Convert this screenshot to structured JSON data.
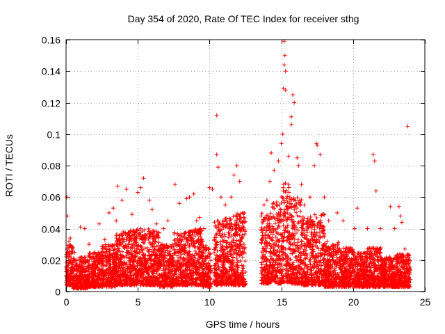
{
  "chart_data": {
    "type": "scatter",
    "title": "Day 354 of 2020, Rate Of TEC Index for receiver sthg",
    "xlabel": "GPS time / hours",
    "ylabel": "ROTI / TECUs",
    "xlim": [
      0,
      25
    ],
    "ylim": [
      0,
      0.16
    ],
    "xticks": [
      0,
      5,
      10,
      15,
      20,
      25
    ],
    "xtick_labels": [
      "0",
      "5",
      "10",
      "15",
      "20",
      "25"
    ],
    "yticks": [
      0,
      0.02,
      0.04,
      0.06,
      0.08,
      0.1,
      0.12,
      0.14,
      0.16
    ],
    "ytick_labels": [
      "0",
      "0.02",
      "0.04",
      "0.06",
      "0.08",
      "0.1",
      "0.12",
      "0.14",
      "0.16"
    ],
    "grid": true,
    "marker": "+",
    "color": "#ff0000",
    "series": [
      {
        "name": "ROTI",
        "points": [
          [
            0.05,
            0.06
          ],
          [
            0.1,
            0.048
          ],
          [
            0.2,
            0.032
          ],
          [
            0.3,
            0.034
          ],
          [
            0.6,
            0.025
          ],
          [
            1.0,
            0.041
          ],
          [
            1.3,
            0.04
          ],
          [
            1.6,
            0.03
          ],
          [
            2.3,
            0.043
          ],
          [
            2.7,
            0.033
          ],
          [
            3.0,
            0.05
          ],
          [
            3.3,
            0.053
          ],
          [
            3.5,
            0.045
          ],
          [
            3.6,
            0.067
          ],
          [
            3.9,
            0.058
          ],
          [
            4.2,
            0.065
          ],
          [
            4.6,
            0.049
          ],
          [
            5.0,
            0.063
          ],
          [
            5.2,
            0.066
          ],
          [
            5.4,
            0.072
          ],
          [
            5.8,
            0.058
          ],
          [
            6.0,
            0.052
          ],
          [
            6.3,
            0.043
          ],
          [
            6.8,
            0.04
          ],
          [
            7.1,
            0.045
          ],
          [
            7.6,
            0.068
          ],
          [
            7.9,
            0.056
          ],
          [
            8.4,
            0.059
          ],
          [
            8.6,
            0.06
          ],
          [
            8.9,
            0.062
          ],
          [
            9.1,
            0.045
          ],
          [
            9.3,
            0.047
          ],
          [
            9.6,
            0.04
          ],
          [
            10.0,
            0.066
          ],
          [
            10.2,
            0.065
          ],
          [
            10.5,
            0.112
          ],
          [
            10.5,
            0.087
          ],
          [
            10.6,
            0.079
          ],
          [
            10.8,
            0.06
          ],
          [
            11.1,
            0.055
          ],
          [
            11.5,
            0.06
          ],
          [
            11.7,
            0.074
          ],
          [
            11.9,
            0.08
          ],
          [
            12.1,
            0.07
          ],
          [
            12.3,
            0.05
          ],
          [
            13.6,
            0.048
          ],
          [
            13.8,
            0.055
          ],
          [
            14.0,
            0.058
          ],
          [
            14.2,
            0.07
          ],
          [
            14.3,
            0.088
          ],
          [
            14.5,
            0.077
          ],
          [
            14.8,
            0.083
          ],
          [
            15.0,
            0.094
          ],
          [
            15.1,
            0.1
          ],
          [
            15.2,
            0.159
          ],
          [
            15.25,
            0.15
          ],
          [
            15.2,
            0.144
          ],
          [
            15.3,
            0.14
          ],
          [
            15.15,
            0.129
          ],
          [
            15.3,
            0.128
          ],
          [
            15.5,
            0.086
          ],
          [
            15.7,
            0.106
          ],
          [
            15.7,
            0.111
          ],
          [
            15.8,
            0.125
          ],
          [
            15.9,
            0.12
          ],
          [
            16.1,
            0.085
          ],
          [
            16.2,
            0.08
          ],
          [
            16.4,
            0.068
          ],
          [
            16.6,
            0.055
          ],
          [
            17.0,
            0.06
          ],
          [
            17.3,
            0.08
          ],
          [
            17.45,
            0.094
          ],
          [
            17.5,
            0.093
          ],
          [
            17.7,
            0.087
          ],
          [
            18.0,
            0.06
          ],
          [
            18.3,
            0.045
          ],
          [
            18.9,
            0.05
          ],
          [
            19.3,
            0.045
          ],
          [
            20.1,
            0.04
          ],
          [
            20.3,
            0.053
          ],
          [
            21.0,
            0.04
          ],
          [
            21.4,
            0.087
          ],
          [
            21.5,
            0.083
          ],
          [
            21.6,
            0.064
          ],
          [
            21.9,
            0.04
          ],
          [
            22.6,
            0.054
          ],
          [
            22.9,
            0.04
          ],
          [
            23.2,
            0.054
          ],
          [
            23.3,
            0.048
          ],
          [
            23.4,
            0.044
          ],
          [
            23.6,
            0.027
          ],
          [
            23.8,
            0.105
          ]
        ],
        "clusters": [
          [
            0.0,
            0.5,
            0.004,
            0.03
          ],
          [
            0.5,
            1.5,
            0.002,
            0.022
          ],
          [
            1.5,
            2.5,
            0.003,
            0.025
          ],
          [
            2.5,
            3.5,
            0.003,
            0.03
          ],
          [
            3.5,
            4.5,
            0.004,
            0.038
          ],
          [
            4.5,
            5.5,
            0.004,
            0.04
          ],
          [
            5.5,
            6.5,
            0.004,
            0.04
          ],
          [
            6.5,
            7.5,
            0.003,
            0.03
          ],
          [
            7.5,
            8.5,
            0.004,
            0.038
          ],
          [
            8.5,
            9.5,
            0.004,
            0.04
          ],
          [
            9.5,
            10.1,
            0.003,
            0.03
          ],
          [
            10.3,
            11.0,
            0.004,
            0.045
          ],
          [
            11.0,
            11.8,
            0.004,
            0.048
          ],
          [
            11.8,
            12.5,
            0.004,
            0.05
          ],
          [
            13.6,
            14.4,
            0.005,
            0.05
          ],
          [
            14.4,
            15.0,
            0.005,
            0.058
          ],
          [
            15.0,
            15.6,
            0.006,
            0.07
          ],
          [
            15.6,
            16.4,
            0.005,
            0.06
          ],
          [
            16.4,
            17.2,
            0.004,
            0.048
          ],
          [
            17.2,
            18.0,
            0.004,
            0.05
          ],
          [
            18.0,
            19.0,
            0.003,
            0.032
          ],
          [
            19.0,
            20.0,
            0.003,
            0.028
          ],
          [
            20.0,
            21.0,
            0.003,
            0.025
          ],
          [
            21.0,
            22.0,
            0.003,
            0.028
          ],
          [
            22.0,
            23.0,
            0.003,
            0.022
          ],
          [
            23.0,
            24.0,
            0.003,
            0.024
          ]
        ]
      }
    ]
  }
}
